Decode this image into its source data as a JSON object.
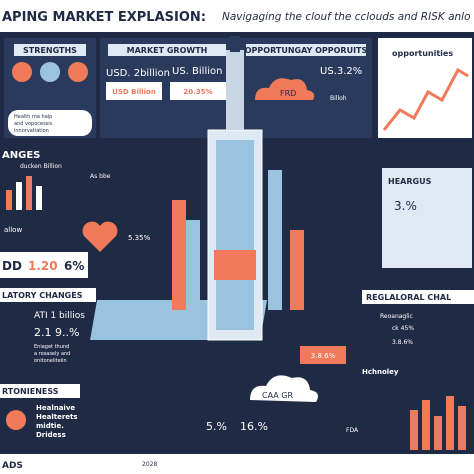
{
  "header": {
    "title": "APING MARKET EXPLASION:",
    "subtitle": "Navigaging the clouf the cclouds and RISK anlo"
  },
  "panels": {
    "strengths": {
      "heading": "STRENGTHS",
      "texts": [
        "Health ma halp",
        "and vopocessis",
        "innorvatiation"
      ]
    },
    "market_growth": {
      "heading": "MARKET GROWTH",
      "texts": [
        "USD. 2billion",
        "US. Billion",
        "USD Billion",
        "20.35%"
      ]
    },
    "opportunity": {
      "heading": "OPPORTUNGAY OPPORUITS",
      "texts": [
        "US.3.2%",
        "FRD",
        "Billoh"
      ]
    },
    "opportunities": {
      "heading": "opportunities"
    },
    "changes": {
      "heading": "ANGES",
      "texts": [
        "ducken Billion",
        "As bbe",
        "allow",
        "DD",
        "1.20",
        "6%"
      ]
    },
    "growth_mid": {
      "texts": [
        "5.35%"
      ]
    },
    "hearing": {
      "heading": "HEARGUS",
      "texts": [
        "3.%"
      ]
    },
    "regulatory": {
      "heading": "LATORY CHANGES",
      "texts": [
        "ATI 1 billios",
        "2.1 9..%",
        "Eniaget thund",
        "a rosasely and",
        "onitoneiiteiin"
      ]
    },
    "regional": {
      "heading": "REGLALORAL CHAL",
      "texts": [
        "Reoanaglic",
        "ck 45%",
        "3.8.6%",
        "Hchnoley"
      ]
    },
    "centre": {
      "texts": [
        "CAA GR",
        "3.8.6%",
        "5.%",
        "16.%",
        "FDA"
      ]
    },
    "portioness": {
      "heading": "RTONIENESS",
      "texts": [
        "Healnaive",
        "Healterets",
        "midtie.",
        "Dridess"
      ]
    },
    "footer": {
      "heading": "ADS",
      "texts": [
        "2028"
      ]
    }
  }
}
